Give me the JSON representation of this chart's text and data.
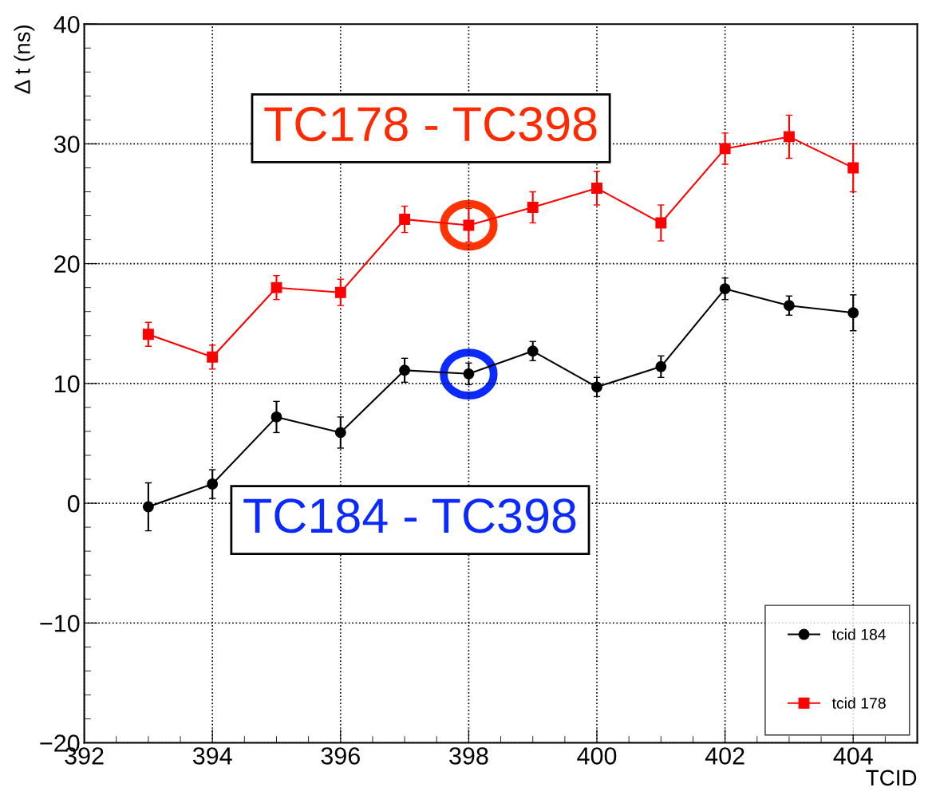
{
  "chart_data": {
    "type": "line",
    "xlabel": "TCID",
    "ylabel": "Δ t (ns)",
    "x": [
      393,
      394,
      395,
      396,
      397,
      398,
      399,
      400,
      401,
      402,
      403,
      404
    ],
    "series": [
      {
        "name": "tcid 184",
        "color": "#000000",
        "marker": "circle",
        "values": [
          -0.3,
          1.6,
          7.2,
          5.9,
          11.1,
          10.8,
          12.7,
          9.7,
          11.4,
          17.9,
          16.5,
          15.9
        ],
        "errors": [
          2.0,
          1.2,
          1.3,
          1.3,
          1.0,
          0.9,
          0.8,
          0.8,
          0.9,
          0.9,
          0.8,
          1.5
        ]
      },
      {
        "name": "tcid 178",
        "color": "#ff0000",
        "marker": "square",
        "values": [
          14.1,
          12.2,
          18.0,
          17.6,
          23.7,
          23.2,
          24.7,
          26.3,
          23.4,
          29.6,
          30.6,
          28.0
        ],
        "errors": [
          1.0,
          1.0,
          1.0,
          1.1,
          1.1,
          1.4,
          1.3,
          1.4,
          1.5,
          1.3,
          1.8,
          2.0
        ]
      }
    ],
    "annotations": [
      "TC178 - TC398",
      "TC184 - TC398"
    ],
    "xlim": [
      392,
      405
    ],
    "xticks": [
      392,
      394,
      396,
      398,
      400,
      402,
      404
    ],
    "ylim": [
      -20,
      40
    ],
    "yticks": [
      {
        "value": -20,
        "label": "−20"
      },
      {
        "value": -10,
        "label": "−10"
      },
      0,
      10,
      20,
      30,
      40
    ],
    "grid": true,
    "legend": "bottom right",
    "line_style": "solid"
  }
}
